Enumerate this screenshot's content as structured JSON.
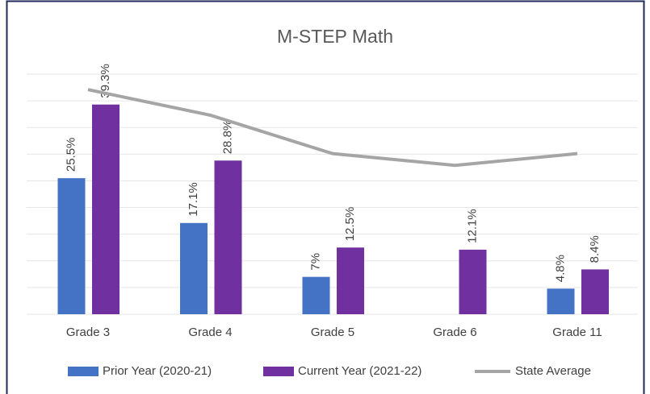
{
  "chart_data": {
    "type": "bar",
    "title": "M-STEP Math",
    "categories": [
      "Grade 3",
      "Grade 4",
      "Grade 5",
      "Grade 6",
      "Grade 11"
    ],
    "series": [
      {
        "name": "Prior Year (2020-21)",
        "type": "bar",
        "color": "#4472c4",
        "values": [
          25.5,
          17.1,
          7,
          null,
          4.8
        ],
        "value_labels": [
          "25.5%",
          "17.1%",
          "7%",
          null,
          "4.8%"
        ]
      },
      {
        "name": "Current Year (2021-22)",
        "type": "bar",
        "color": "#7030a0",
        "values": [
          39.3,
          28.8,
          12.5,
          12.1,
          8.4
        ],
        "value_labels": [
          "39.3%",
          "28.8%",
          "12.5%",
          "12.1%",
          "8.4%"
        ]
      },
      {
        "name": "State Average",
        "type": "line",
        "color": "#a5a5a5",
        "values": [
          42.1,
          37.3,
          30.1,
          27.9,
          30.1
        ]
      }
    ],
    "ylim": [
      0,
      45
    ],
    "yticks": [
      0,
      5,
      10,
      15,
      20,
      25,
      30,
      35,
      40,
      45
    ],
    "grid": true,
    "legend": "bottom"
  }
}
